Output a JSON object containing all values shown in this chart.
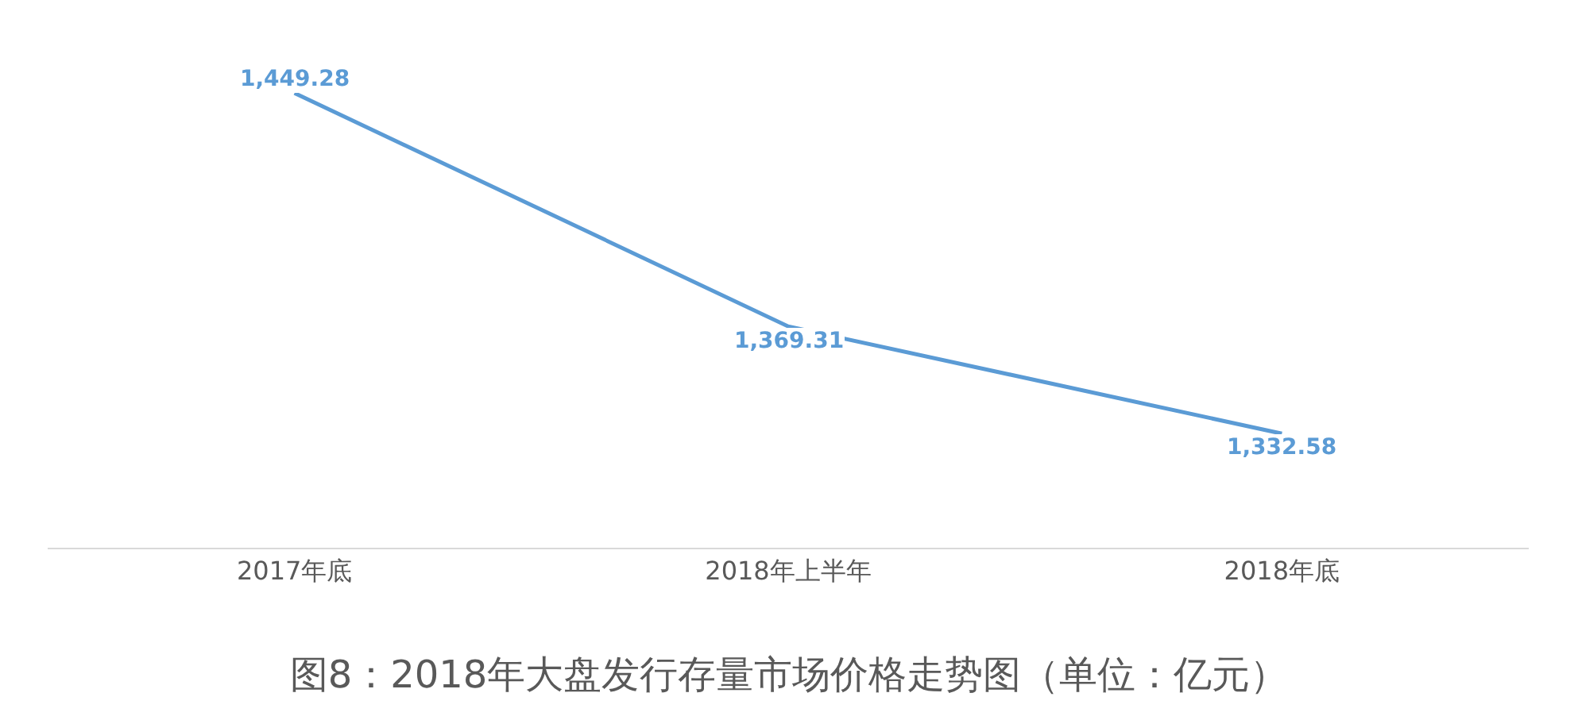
{
  "chart_data": {
    "type": "line",
    "title": "图8：2018年大盘发行存量市场价格走势图（单位：亿元）",
    "categories": [
      "2017年底",
      "2018年上半年",
      "2018年底"
    ],
    "series": [
      {
        "color": "#5b9bd5",
        "values": [
          1449.28,
          1369.31,
          1332.58
        ],
        "value_labels": [
          "1,449.28",
          "1,369.31",
          "1,332.58"
        ]
      }
    ],
    "tick_labels": "x",
    "marker": "none",
    "line_style": "solid"
  }
}
